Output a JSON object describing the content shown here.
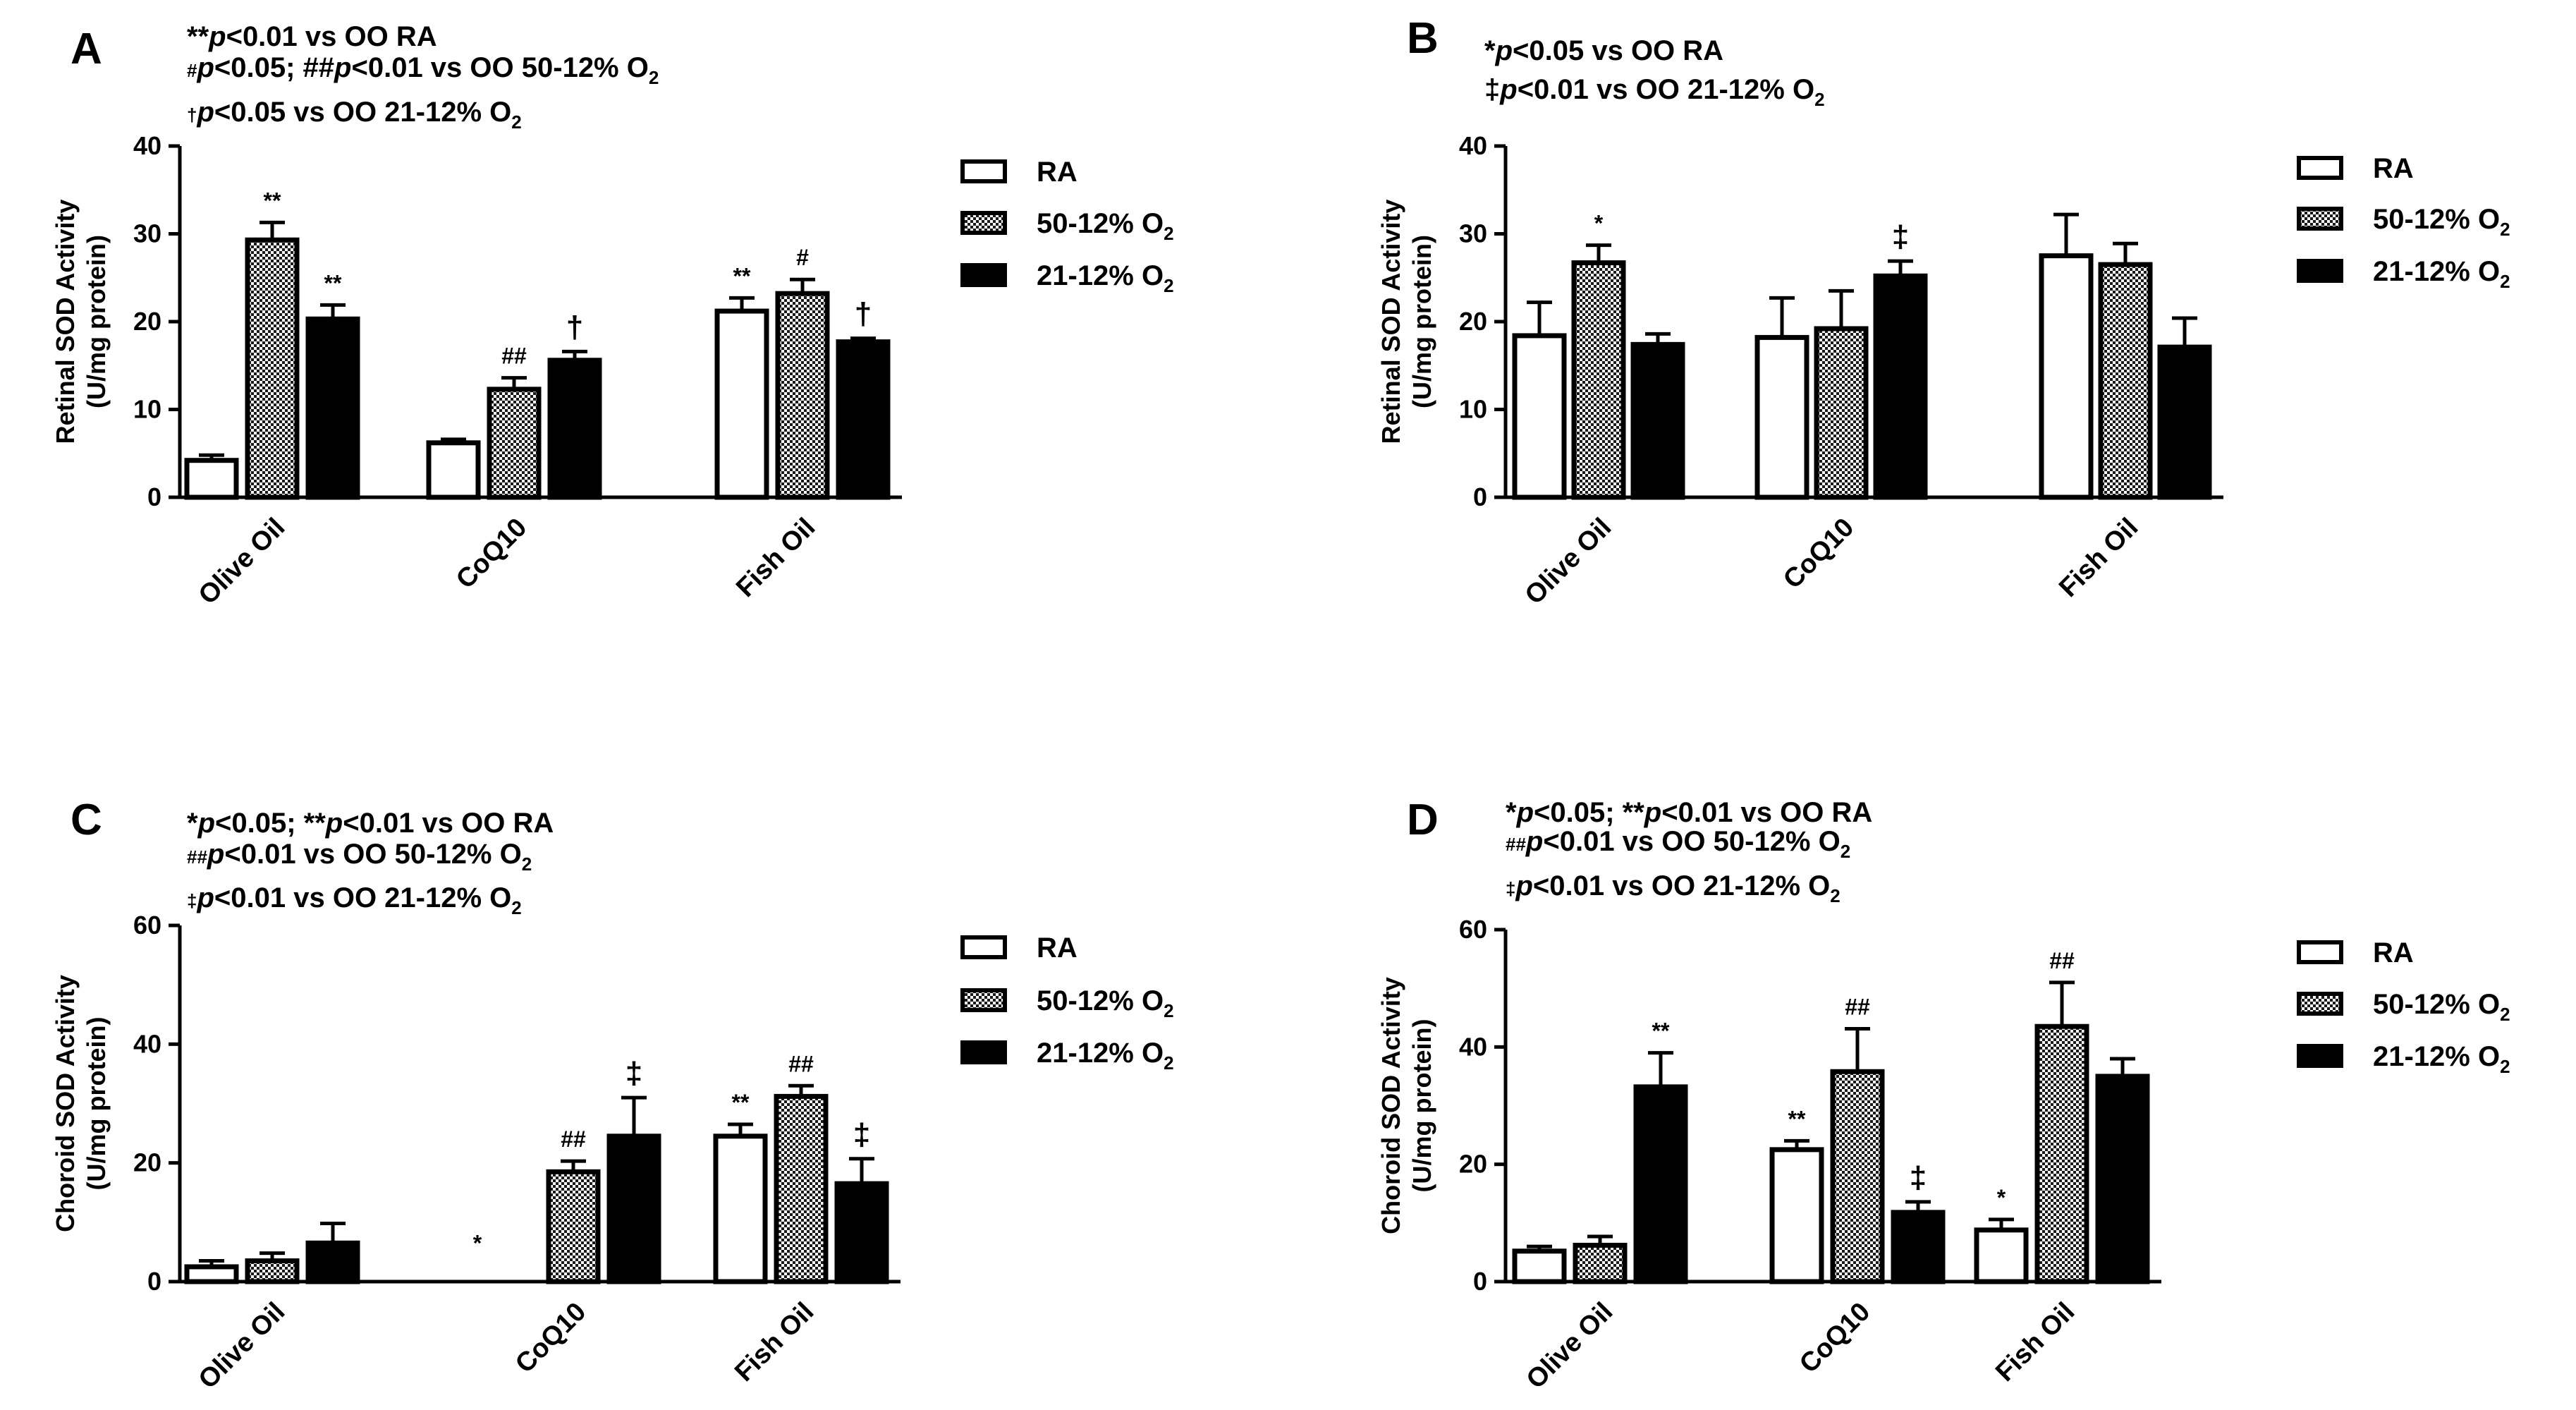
{
  "chart_data": [
    {
      "type": "bar",
      "panel": "A",
      "annotations": [
        [
          {
            "t": "**"
          },
          {
            "t": "p",
            "i": true
          },
          {
            "t": "<0.01 vs OO RA"
          }
        ],
        [
          {
            "t": "#",
            "sup": true
          },
          {
            "t": "p",
            "i": true
          },
          {
            "t": "<0.05; ##"
          },
          {
            "t": "p",
            "i": true
          },
          {
            "t": "<0.01 vs OO 50-12% O"
          },
          {
            "t": "2",
            "sub": true
          }
        ],
        [
          {
            "t": "†",
            "sup": true
          },
          {
            "t": "p",
            "i": true
          },
          {
            "t": "<0.05 vs OO 21-12%  O"
          },
          {
            "t": "2",
            "sub": true
          }
        ]
      ],
      "ylabel": [
        "Retinal SOD Activity",
        "(U/mg protein)"
      ],
      "ylim": [
        0,
        40
      ],
      "yticks": [
        "0",
        "10",
        "20",
        "30",
        "40"
      ],
      "categories": [
        "Olive Oil",
        "CoQ10",
        "Fish Oil"
      ],
      "series": [
        {
          "name": "RA",
          "values": [
            4.2,
            6.2,
            21.2
          ],
          "errors": [
            0.6,
            0.4,
            1.5
          ],
          "labels": [
            "",
            "",
            "**"
          ]
        },
        {
          "name": "50-12% O2",
          "values": [
            29.3,
            12.3,
            23.2
          ],
          "errors": [
            2.0,
            1.3,
            1.6
          ],
          "labels": [
            "**",
            "##",
            "#"
          ]
        },
        {
          "name": "21-12% O2",
          "values": [
            20.3,
            15.6,
            17.7
          ],
          "errors": [
            1.6,
            1.0,
            0.4
          ],
          "labels": [
            "**",
            "†",
            "†"
          ]
        }
      ],
      "legend": [
        {
          "name": "RA",
          "base": "RA",
          "sub": ""
        },
        {
          "name": "50-12% O2",
          "base": "50-12% O",
          "sub": "2"
        },
        {
          "name": "21-12% O2",
          "base": "21-12% O",
          "sub": "2"
        }
      ],
      "stray_labels": []
    },
    {
      "type": "bar",
      "panel": "B",
      "annotations": [
        [
          {
            "t": "*"
          },
          {
            "t": "p",
            "i": true
          },
          {
            "t": "<0.05 vs OO RA"
          }
        ],
        [
          {
            "t": "‡"
          },
          {
            "t": "p",
            "i": true
          },
          {
            "t": "<0.01 vs OO 21-12%  O"
          },
          {
            "t": "2",
            "sub": true
          }
        ]
      ],
      "ylabel": [
        "Retinal SOD Activity",
        "(U/mg protein)"
      ],
      "ylim": [
        0,
        40
      ],
      "yticks": [
        "0",
        "10",
        "20",
        "30",
        "40"
      ],
      "categories": [
        "Olive Oil",
        "CoQ10",
        "Fish Oil"
      ],
      "series": [
        {
          "name": "RA",
          "values": [
            18.4,
            18.2,
            27.5
          ],
          "errors": [
            3.8,
            4.5,
            4.7
          ],
          "labels": [
            "",
            "",
            ""
          ]
        },
        {
          "name": "50-12% O2",
          "values": [
            26.7,
            19.2,
            26.5
          ],
          "errors": [
            2.0,
            4.3,
            2.4
          ],
          "labels": [
            "*",
            "",
            ""
          ]
        },
        {
          "name": "21-12% O2",
          "values": [
            17.4,
            25.2,
            17.1
          ],
          "errors": [
            1.2,
            1.7,
            3.3
          ],
          "labels": [
            "",
            "‡",
            ""
          ]
        }
      ],
      "legend": [
        {
          "name": "RA",
          "base": "RA",
          "sub": ""
        },
        {
          "name": "50-12% O2",
          "base": "50-12% O",
          "sub": "2"
        },
        {
          "name": "21-12% O2",
          "base": "21-12% O",
          "sub": "2"
        }
      ],
      "stray_labels": []
    },
    {
      "type": "bar",
      "panel": "C",
      "annotations": [
        [
          {
            "t": "*"
          },
          {
            "t": "p",
            "i": true
          },
          {
            "t": "<0.05; **"
          },
          {
            "t": "p",
            "i": true
          },
          {
            "t": "<0.01 vs OO RA"
          }
        ],
        [
          {
            "t": "##",
            "sup": true
          },
          {
            "t": "p",
            "i": true
          },
          {
            "t": "<0.01 vs OO 50-12% O"
          },
          {
            "t": "2",
            "sub": true
          }
        ],
        [
          {
            "t": "‡",
            "sup": true
          },
          {
            "t": "p",
            "i": true
          },
          {
            "t": "<0.01 vs OO 21-12% O"
          },
          {
            "t": "2",
            "sub": true
          }
        ]
      ],
      "ylabel": [
        "Choroid SOD Activity",
        "(U/mg protein)"
      ],
      "ylim": [
        0,
        60
      ],
      "yticks": [
        "0",
        "20",
        "40",
        "60"
      ],
      "categories": [
        "Olive Oil",
        "CoQ10",
        "Fish Oil"
      ],
      "series": [
        {
          "name": "RA",
          "values": [
            2.5,
            0,
            24.5
          ],
          "errors": [
            1.0,
            0,
            2.0
          ],
          "labels": [
            "",
            "",
            "**"
          ]
        },
        {
          "name": "50-12% O2",
          "values": [
            3.5,
            18.5,
            31.2
          ],
          "errors": [
            1.3,
            1.8,
            1.8
          ],
          "labels": [
            "",
            "##",
            "##"
          ]
        },
        {
          "name": "21-12% O2",
          "values": [
            6.5,
            24.5,
            16.5
          ],
          "errors": [
            3.3,
            6.5,
            4.2
          ],
          "labels": [
            "",
            "‡",
            "‡"
          ]
        }
      ],
      "legend": [
        {
          "name": "RA",
          "base": "RA",
          "sub": ""
        },
        {
          "name": "50-12% O2",
          "base": "50-12% O",
          "sub": "2"
        },
        {
          "name": "21-12% O2",
          "base": "21-12% O",
          "sub": "2"
        }
      ],
      "stray_labels": [
        {
          "text": "*",
          "category": 1,
          "series": 0,
          "value": 4
        }
      ]
    },
    {
      "type": "bar",
      "panel": "D",
      "annotations": [
        [
          {
            "t": "*"
          },
          {
            "t": "p",
            "i": true
          },
          {
            "t": "<0.05; **"
          },
          {
            "t": "p",
            "i": true
          },
          {
            "t": "<0.01 vs OO RA"
          }
        ],
        [
          {
            "t": "##",
            "sup": true
          },
          {
            "t": "p",
            "i": true
          },
          {
            "t": "<0.01 vs OO 50-12% O"
          },
          {
            "t": "2",
            "sub": true
          }
        ],
        [
          {
            "t": "‡",
            "sup": true
          },
          {
            "t": "p",
            "i": true
          },
          {
            "t": "<0.01 vs OO 21-12% O"
          },
          {
            "t": "2",
            "sub": true
          }
        ]
      ],
      "ylabel": [
        "Choroid SOD Activity",
        "(U/mg protein)"
      ],
      "ylim": [
        0,
        60
      ],
      "yticks": [
        "0",
        "20",
        "40",
        "60"
      ],
      "categories": [
        "Olive Oil",
        "CoQ10",
        "Fish Oil"
      ],
      "series": [
        {
          "name": "RA",
          "values": [
            5.2,
            22.5,
            8.8
          ],
          "errors": [
            0.8,
            1.5,
            1.8
          ],
          "labels": [
            "",
            "**",
            "*"
          ]
        },
        {
          "name": "50-12% O2",
          "values": [
            6.2,
            35.8,
            43.5
          ],
          "errors": [
            1.5,
            7.3,
            7.5
          ],
          "labels": [
            "",
            "##",
            "##"
          ]
        },
        {
          "name": "21-12% O2",
          "values": [
            33.2,
            11.8,
            35.0
          ],
          "errors": [
            5.8,
            1.8,
            3.0
          ],
          "labels": [
            "**",
            "‡",
            ""
          ]
        }
      ],
      "legend": [
        {
          "name": "RA",
          "base": "RA",
          "sub": ""
        },
        {
          "name": "50-12% O2",
          "base": "50-12% O",
          "sub": "2"
        },
        {
          "name": "21-12% O2",
          "base": "21-12% O",
          "sub": "2"
        }
      ],
      "stray_labels": []
    }
  ]
}
